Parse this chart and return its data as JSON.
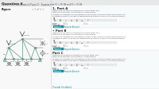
{
  "bg_color": "#f0f0f0",
  "page_bg": "#ffffff",
  "header_text": "Question 6",
  "header_sub": "Consider the truss shown in (Figure 1).  Suppose that F1 = 55 kN and F2 = 30 kN",
  "parts": [
    "Part A",
    "Part B",
    "Part C"
  ],
  "part_descs": [
    "Determine the force in member DC of the truss, and state if the member is in tension or compression.",
    "Determine the force in member HC of the truss, and state if the member is in tension or compression.",
    "Determine the force in member HI of the truss, and state if the member is in tension or compression."
  ],
  "part_expr": "Express your answer to three significant figures and include the appropriate units. Enter negative value in the case of compression and positive value in the case of tension.",
  "part_labels": [
    "FDC =",
    "FHC =",
    "FHI ="
  ],
  "figure_label": "Figure",
  "figure_num": "< 1 of 1 >",
  "truss_color": "#6b9e8e",
  "submit_color": "#1a8a9a",
  "text_dark": "#222222",
  "text_med": "#444444",
  "text_light": "#888888",
  "panel_a_bg": "#f7fafa",
  "panel_b_bg": "#ffffff",
  "panel_c_bg": "#f7fafa",
  "divider_color": "#dddddd",
  "input_bg": "#ffffff",
  "input_border": "#bbbbbb",
  "toolbar_bg": "#e8e8e8",
  "provide_feedback": "Provide Feedback",
  "request_answer": "Request Answer",
  "submit_text": "Submit"
}
